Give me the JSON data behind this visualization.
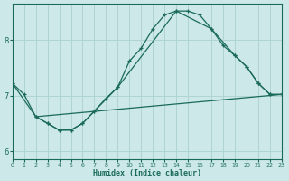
{
  "xlabel": "Humidex (Indice chaleur)",
  "bg_color": "#cce8e8",
  "grid_color": "#b0d4d4",
  "line_color": "#1a6a5a",
  "xlim": [
    0,
    23
  ],
  "ylim": [
    5.85,
    8.65
  ],
  "yticks": [
    6,
    7,
    8
  ],
  "xticks": [
    0,
    1,
    2,
    3,
    4,
    5,
    6,
    7,
    8,
    9,
    10,
    11,
    12,
    13,
    14,
    15,
    16,
    17,
    18,
    19,
    20,
    21,
    22,
    23
  ],
  "curve1_x": [
    0,
    1,
    2,
    3,
    4,
    5,
    6,
    7,
    8,
    9,
    10,
    11,
    12,
    13,
    14,
    15,
    16,
    17,
    18,
    19,
    20,
    21,
    22,
    23
  ],
  "curve1_y": [
    7.22,
    7.02,
    6.62,
    6.5,
    6.38,
    6.38,
    6.5,
    6.72,
    6.95,
    7.15,
    7.62,
    7.85,
    8.2,
    8.45,
    8.52,
    8.52,
    8.45,
    8.2,
    7.9,
    7.72,
    7.52,
    7.22,
    7.02,
    7.02
  ],
  "curve2_x": [
    0,
    2,
    3,
    4,
    5,
    6,
    7,
    9,
    14,
    17,
    19,
    20,
    21,
    22,
    23
  ],
  "curve2_y": [
    7.22,
    6.62,
    6.5,
    6.38,
    6.38,
    6.5,
    6.72,
    7.15,
    8.52,
    8.2,
    7.72,
    7.52,
    7.22,
    7.02,
    7.02
  ],
  "curve3_x": [
    2,
    23
  ],
  "curve3_y": [
    6.62,
    7.02
  ]
}
